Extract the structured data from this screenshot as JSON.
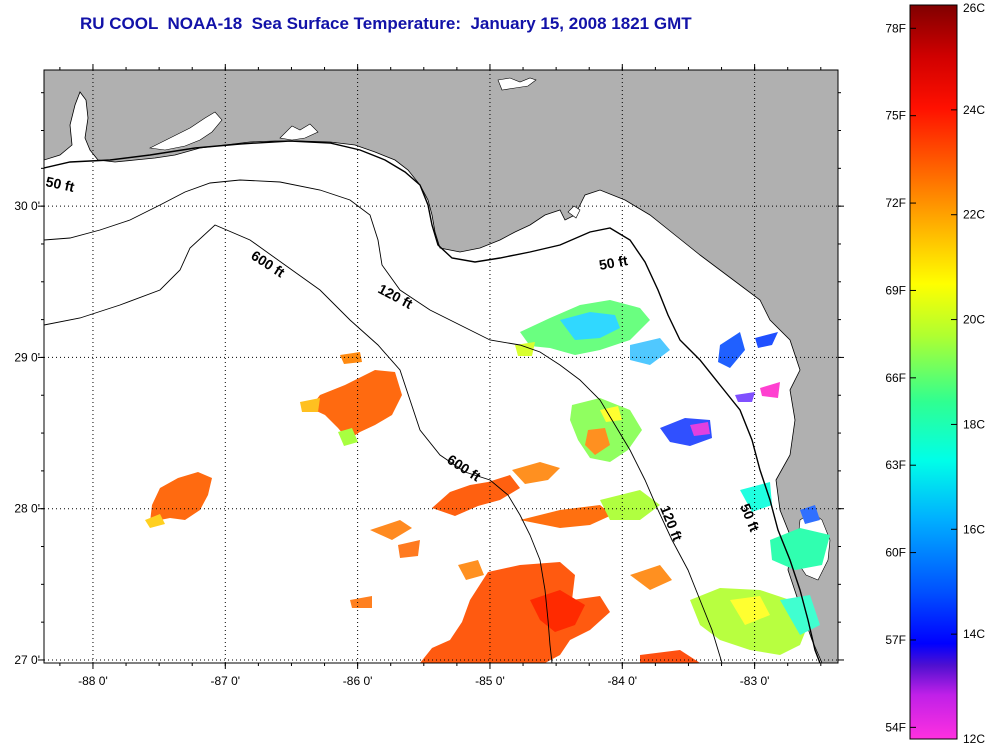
{
  "title": "RU COOL  NOAA-18  Sea Surface Temperature:  January 15, 2008 1821 GMT",
  "map": {
    "lon_ticks": [
      {
        "lon": -88,
        "label": "-88 0'"
      },
      {
        "lon": -87,
        "label": "-87 0'"
      },
      {
        "lon": -86,
        "label": "-86 0'"
      },
      {
        "lon": -85,
        "label": "-85 0'"
      },
      {
        "lon": -84,
        "label": "-84 0'"
      },
      {
        "lon": -83,
        "label": "-83 0'"
      }
    ],
    "lat_ticks": [
      {
        "lat": 30,
        "label": "30 0'"
      },
      {
        "lat": 29,
        "label": "29 0'"
      },
      {
        "lat": 28,
        "label": "28 0'"
      },
      {
        "lat": 27,
        "label": "27 0'"
      }
    ],
    "lon_range": [
      -88.37,
      -82.37
    ],
    "lat_range": [
      26.98,
      30.9
    ],
    "land_color": "#b0b0b0",
    "water_color": "#ffffff",
    "isobaths": [
      {
        "label": "50 ft"
      },
      {
        "label": "120 ft"
      },
      {
        "label": "600 ft"
      },
      {
        "label": "600 ft"
      },
      {
        "label": "50 ft"
      },
      {
        "label": "120 ft"
      },
      {
        "label": "50 ft"
      }
    ]
  },
  "colorbar": {
    "fahrenheit_labels": [
      "78F",
      "75F",
      "72F",
      "69F",
      "66F",
      "63F",
      "60F",
      "57F",
      "54F"
    ],
    "celsius_labels": [
      "26C",
      "24C",
      "22C",
      "20C",
      "18C",
      "16C",
      "14C",
      "12C"
    ],
    "range_c": [
      12,
      26
    ],
    "colors": [
      "#ff30e0",
      "#7018d8",
      "#0000ff",
      "#0060ff",
      "#00c0ff",
      "#00ffe0",
      "#40ff90",
      "#b8ff30",
      "#ffff00",
      "#ffc000",
      "#ff7000",
      "#ff2000",
      "#e00000",
      "#8b0000"
    ]
  }
}
